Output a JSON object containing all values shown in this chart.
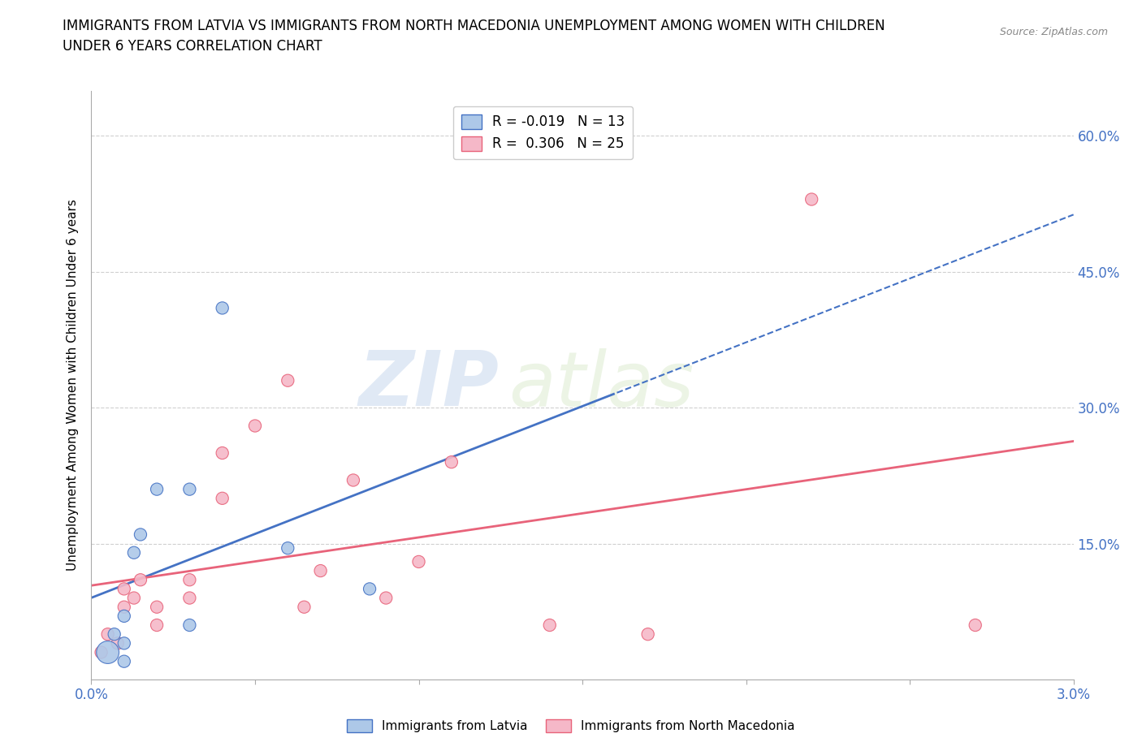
{
  "title_line1": "IMMIGRANTS FROM LATVIA VS IMMIGRANTS FROM NORTH MACEDONIA UNEMPLOYMENT AMONG WOMEN WITH CHILDREN",
  "title_line2": "UNDER 6 YEARS CORRELATION CHART",
  "source": "Source: ZipAtlas.com",
  "ylabel": "Unemployment Among Women with Children Under 6 years",
  "xlim": [
    0.0,
    0.03
  ],
  "ylim": [
    0.0,
    0.65
  ],
  "xticks": [
    0.0,
    0.005,
    0.01,
    0.015,
    0.02,
    0.025,
    0.03
  ],
  "yticks": [
    0.0,
    0.15,
    0.3,
    0.45,
    0.6
  ],
  "ytick_labels": [
    "",
    "15.0%",
    "30.0%",
    "45.0%",
    "60.0%"
  ],
  "latvia_R": -0.019,
  "latvia_N": 13,
  "macedonia_R": 0.306,
  "macedonia_N": 25,
  "latvia_color": "#adc8e8",
  "macedonia_color": "#f5b8c8",
  "latvia_line_color": "#4472c4",
  "macedonia_line_color": "#e8637a",
  "latvia_x": [
    0.0005,
    0.0007,
    0.001,
    0.001,
    0.001,
    0.0013,
    0.0015,
    0.002,
    0.003,
    0.003,
    0.004,
    0.006,
    0.0085
  ],
  "latvia_y": [
    0.03,
    0.05,
    0.02,
    0.04,
    0.07,
    0.14,
    0.16,
    0.21,
    0.06,
    0.21,
    0.41,
    0.145,
    0.1
  ],
  "macedonia_x": [
    0.0003,
    0.0005,
    0.0008,
    0.001,
    0.001,
    0.0013,
    0.0015,
    0.002,
    0.002,
    0.003,
    0.003,
    0.004,
    0.004,
    0.005,
    0.006,
    0.0065,
    0.007,
    0.008,
    0.009,
    0.01,
    0.011,
    0.014,
    0.017,
    0.022,
    0.027
  ],
  "macedonia_y": [
    0.03,
    0.05,
    0.04,
    0.08,
    0.1,
    0.09,
    0.11,
    0.06,
    0.08,
    0.09,
    0.11,
    0.2,
    0.25,
    0.28,
    0.33,
    0.08,
    0.12,
    0.22,
    0.09,
    0.13,
    0.24,
    0.06,
    0.05,
    0.53,
    0.06
  ],
  "latvia_sizes": [
    400,
    150,
    150,
    150,
    150,
    150,
    150,
    150,
    150,
    150,
    150,
    150,
    150
  ],
  "watermark_zip": "ZIP",
  "watermark_atlas": "atlas"
}
